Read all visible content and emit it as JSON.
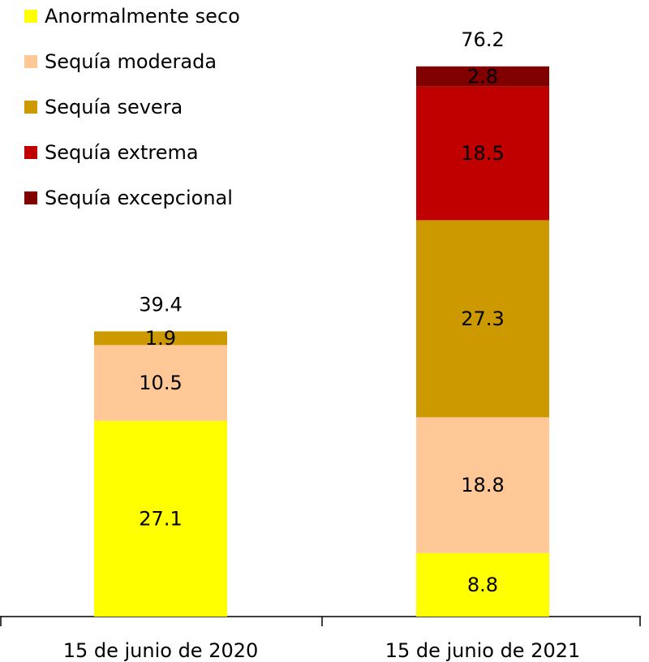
{
  "chart_data": {
    "type": "stacked_bar",
    "categories": [
      "15 de junio de 2020",
      "15 de junio de 2021"
    ],
    "series": [
      {
        "name": "Anormalmente seco",
        "color": "#ffff00",
        "values": [
          27.1,
          8.8
        ]
      },
      {
        "name": "Sequía moderada",
        "color": "#ffc896",
        "values": [
          10.5,
          18.8
        ]
      },
      {
        "name": "Sequía severa",
        "color": "#cc9900",
        "values": [
          1.9,
          27.3
        ]
      },
      {
        "name": "Sequía extrema",
        "color": "#c00000",
        "values": [
          null,
          18.5
        ]
      },
      {
        "name": "Sequía excepcional",
        "color": "#800000",
        "values": [
          null,
          2.8
        ]
      }
    ],
    "totals": [
      39.4,
      76.2
    ],
    "legend": "top-left"
  }
}
